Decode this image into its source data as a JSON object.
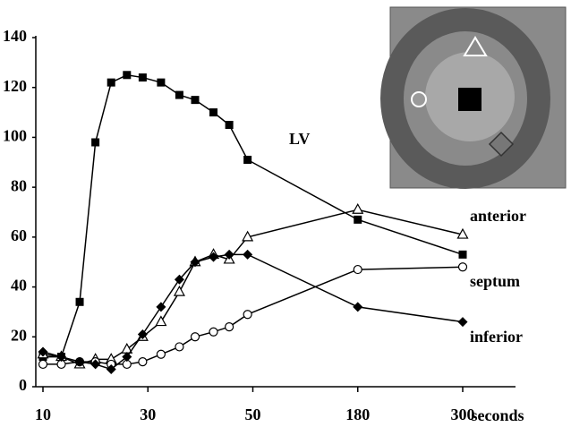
{
  "chart_data": {
    "type": "line",
    "xlabel": "seconds",
    "x": [
      10,
      13.5,
      17,
      20,
      23,
      26,
      29,
      32.5,
      36,
      39,
      42.5,
      45.5,
      49,
      180,
      300
    ],
    "xticks": [
      10,
      30,
      50,
      180,
      300
    ],
    "ylim": [
      0,
      140
    ],
    "yticks": [
      0,
      20,
      40,
      60,
      80,
      100,
      120,
      140
    ],
    "grid": false,
    "series": [
      {
        "name": "LV",
        "color": "#000000",
        "marker": "square",
        "values": [
          12,
          12,
          34,
          98,
          122,
          125,
          124,
          122,
          117,
          115,
          110,
          105,
          91,
          67,
          53
        ]
      },
      {
        "name": "anterior",
        "color": "#000000",
        "marker": "triangle",
        "values": [
          13,
          12,
          9,
          11,
          11,
          15,
          20,
          26,
          38,
          50,
          53,
          51,
          60,
          71,
          61
        ]
      },
      {
        "name": "septum",
        "color": "#000000",
        "marker": "circle",
        "values": [
          9,
          9,
          10,
          10,
          9,
          9,
          10,
          13,
          16,
          20,
          22,
          24,
          29,
          47,
          48
        ]
      },
      {
        "name": "inferior",
        "color": "#000000",
        "marker": "diamond",
        "values": [
          14,
          12,
          10,
          9,
          7,
          12,
          21,
          32,
          43,
          50,
          52,
          53,
          53,
          32,
          26
        ]
      }
    ]
  }
}
